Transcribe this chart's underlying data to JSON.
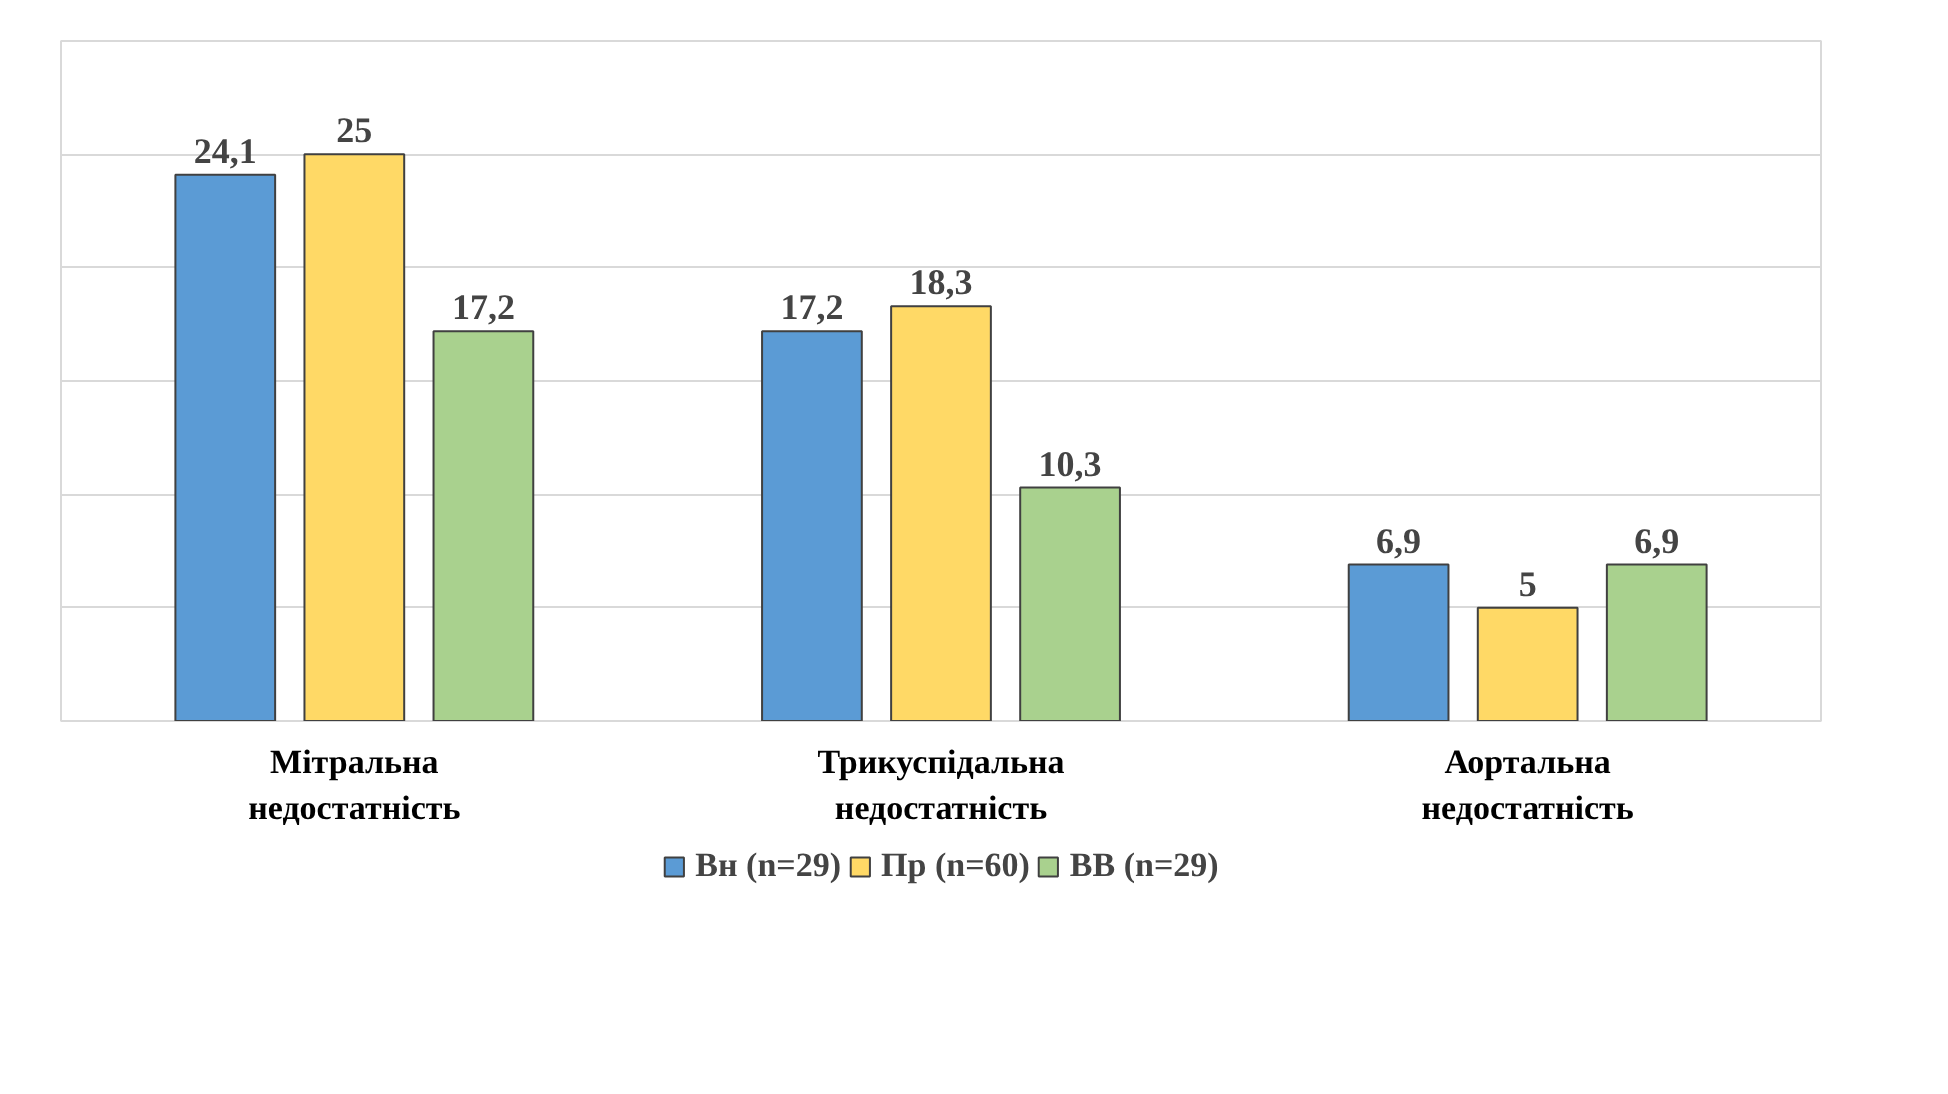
{
  "chart_data": {
    "type": "bar",
    "categories": [
      "Мітральна недостатність",
      "Трикуспідальна недостатність",
      "Аортальна недостатність"
    ],
    "series": [
      {
        "name": "Вн (n=29)",
        "color": "#5b9bd5",
        "values": [
          24.1,
          17.2,
          6.9
        ],
        "value_labels": [
          "24,1",
          "17,2",
          "6,9"
        ]
      },
      {
        "name": "Пр (n=60)",
        "color": "#ffd966",
        "values": [
          25,
          18.3,
          5
        ],
        "value_labels": [
          "25",
          "18,3",
          "5"
        ]
      },
      {
        "name": "ВВ (n=29)",
        "color": "#a9d18e",
        "values": [
          17.2,
          10.3,
          6.9
        ],
        "value_labels": [
          "17,2",
          "10,3",
          "6,9"
        ]
      }
    ],
    "ylim": [
      0,
      30
    ],
    "yticks": [
      {
        "value": 0,
        "label": null
      },
      {
        "value": 5,
        "label": null
      },
      {
        "value": 10,
        "label": null
      },
      {
        "value": 15,
        "label": null
      },
      {
        "value": 20,
        "label": null
      },
      {
        "value": 25,
        "label": null
      },
      {
        "value": 30,
        "label": null
      }
    ],
    "tick_labels": "x",
    "grid": "y",
    "legend": "bottom"
  }
}
